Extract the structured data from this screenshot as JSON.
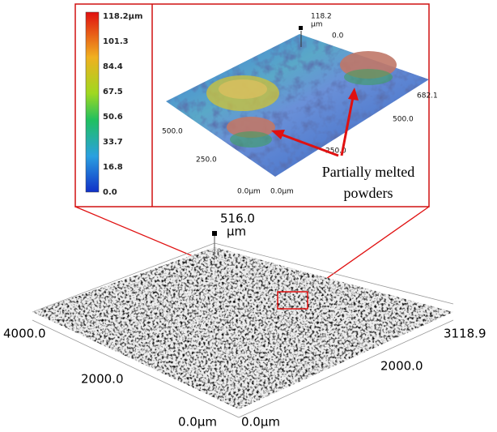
{
  "colorbar": {
    "labels": [
      "118.2µm",
      "101.3",
      "84.4",
      "67.5",
      "50.6",
      "33.7",
      "16.8",
      "0.0"
    ]
  },
  "inset": {
    "z_top": "118.2",
    "z_unit": "µm",
    "z_zero": "0.0",
    "x_far": "682.1",
    "x_mid": "500.0",
    "y_far": "500.0",
    "y_mid": "250.0",
    "x_near_mid": "250.0",
    "y_origin": "0.0µm",
    "x_origin": "0.0µm"
  },
  "annotation": {
    "line1": "Partially melted",
    "line2": "powders"
  },
  "main": {
    "z_top": "516.0",
    "z_unit": "µm",
    "y_far": "4000.0",
    "y_mid": "2000.0",
    "y_origin": "0.0µm",
    "x_origin": "0.0µm",
    "x_mid": "2000.0",
    "x_far": "3118.9"
  }
}
